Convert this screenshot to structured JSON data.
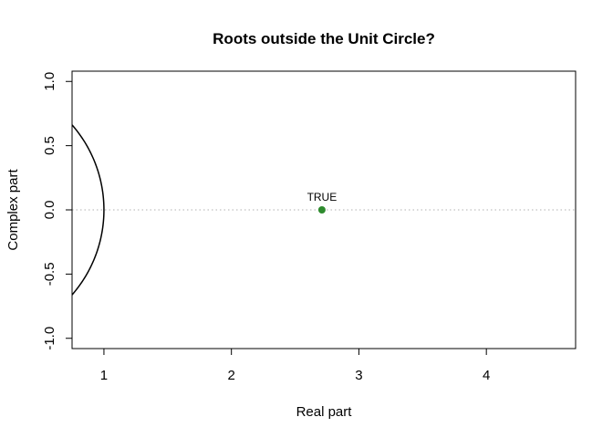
{
  "chart_data": {
    "type": "scatter",
    "title": "Roots outside the Unit Circle?",
    "xlabel": "Real part",
    "ylabel": "Complex part",
    "xlim": [
      0.75,
      4.7
    ],
    "ylim": [
      -1.08,
      1.08
    ],
    "x_ticks": [
      1,
      2,
      3,
      4
    ],
    "x_tick_labels": [
      "1",
      "2",
      "3",
      "4"
    ],
    "y_ticks": [
      -1.0,
      -0.5,
      0.0,
      0.5,
      1.0
    ],
    "y_tick_labels": [
      "-1.0",
      "-0.5",
      "0.0",
      "0.5",
      "1.0"
    ],
    "grid": false,
    "reference_line": {
      "y": 0,
      "style": "dotted",
      "color": "#b0b0b0"
    },
    "unit_circle": {
      "radius": 1,
      "color": "#000000"
    },
    "points": [
      {
        "x": 2.71,
        "y": 0.0,
        "label": "TRUE",
        "color": "#2e8b2e"
      }
    ]
  }
}
